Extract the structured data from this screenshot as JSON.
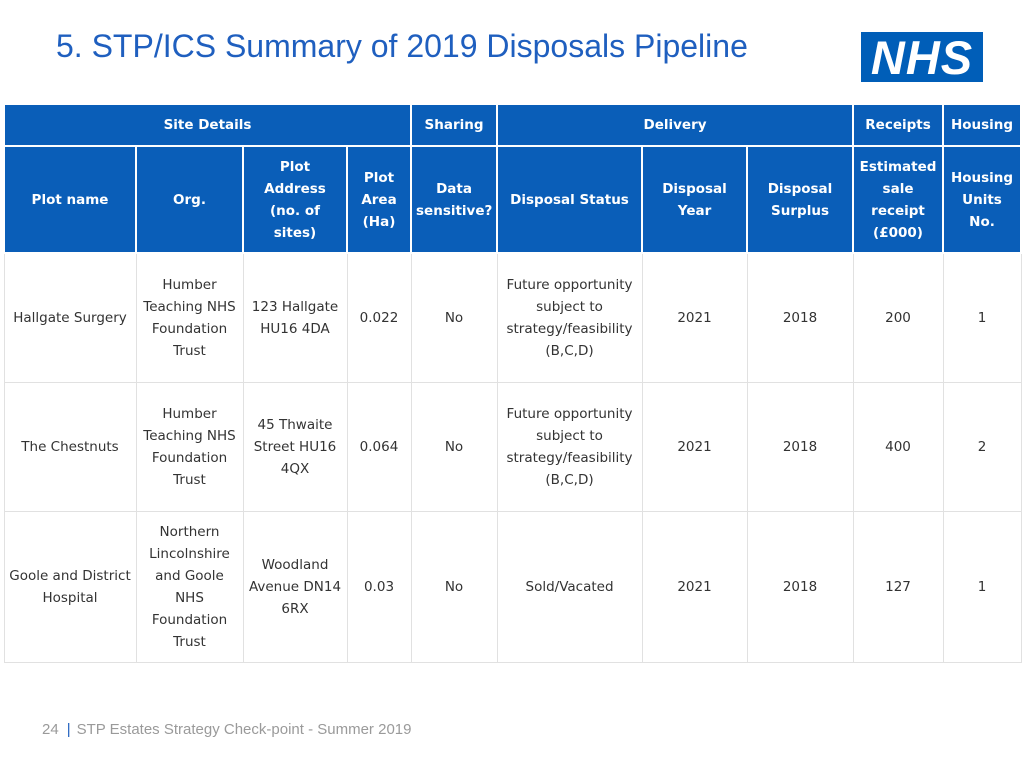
{
  "slide": {
    "title": "5. STP/ICS Summary of 2019 Disposals Pipeline",
    "logo_text": "NHS",
    "page_number": "24",
    "footer_text": "STP Estates Strategy Check-point - Summer 2019"
  },
  "table": {
    "groups": {
      "site_details": "Site Details",
      "sharing": "Sharing",
      "delivery": "Delivery",
      "receipts": "Receipts",
      "housing": "Housing"
    },
    "columns": {
      "plot_name": "Plot name",
      "org": "Org.",
      "plot_address": "Plot Address (no. of sites)",
      "plot_area": "Plot Area (Ha)",
      "data_sensitive": "Data sensitive?",
      "disposal_status": "Disposal Status",
      "disposal_year": "Disposal Year",
      "disposal_surplus": "Disposal Surplus",
      "sale_receipt": "Estimated sale receipt (£000)",
      "housing_units": "Housing Units No."
    },
    "rows": [
      {
        "plot_name": "Hallgate Surgery",
        "org": "Humber Teaching NHS Foundation Trust",
        "address": "123 Hallgate HU16 4DA",
        "area": "0.022",
        "sensitive": "No",
        "status": "Future opportunity subject to strategy/feasibility (B,C,D)",
        "year": "2021",
        "surplus": "2018",
        "receipt": "200",
        "units": "1"
      },
      {
        "plot_name": "The Chestnuts",
        "org": "Humber Teaching NHS Foundation Trust",
        "address": "45 Thwaite Street HU16 4QX",
        "area": "0.064",
        "sensitive": "No",
        "status": "Future opportunity subject to strategy/feasibility (B,C,D)",
        "year": "2021",
        "surplus": "2018",
        "receipt": "400",
        "units": "2"
      },
      {
        "plot_name": "Goole and District Hospital",
        "org": "Northern Lincolnshire and Goole NHS Foundation Trust",
        "address": "Woodland Avenue DN14 6RX",
        "area": "0.03",
        "sensitive": "No",
        "status": "Sold/Vacated",
        "year": "2021",
        "surplus": "2018",
        "receipt": "127",
        "units": "1"
      }
    ]
  },
  "colors": {
    "header_bg": "#0a5eb8",
    "title": "#1f5fbf",
    "logo_bg": "#005eb8",
    "footer_text": "#9a9a9a"
  }
}
